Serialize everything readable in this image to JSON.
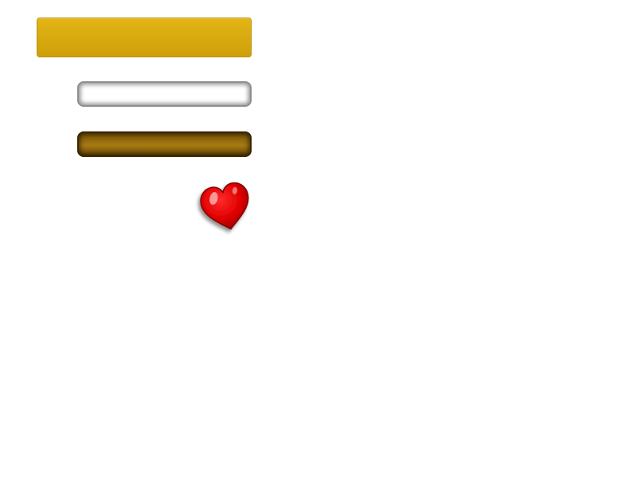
{
  "controls": {
    "gold_button": {
      "label": ""
    },
    "white_input": {
      "value": "",
      "placeholder": ""
    },
    "bronze_input": {
      "value": "",
      "placeholder": ""
    }
  },
  "icons": {
    "heart": "heart-icon"
  },
  "colors": {
    "gold": "#d9aa0f",
    "gold_border": "#b8900b",
    "white_field_border": "#8e8e8e",
    "bronze": "#a67a12",
    "bronze_border": "#3a2504",
    "heart_red": "#e00000",
    "heart_dark": "#7a0000"
  }
}
